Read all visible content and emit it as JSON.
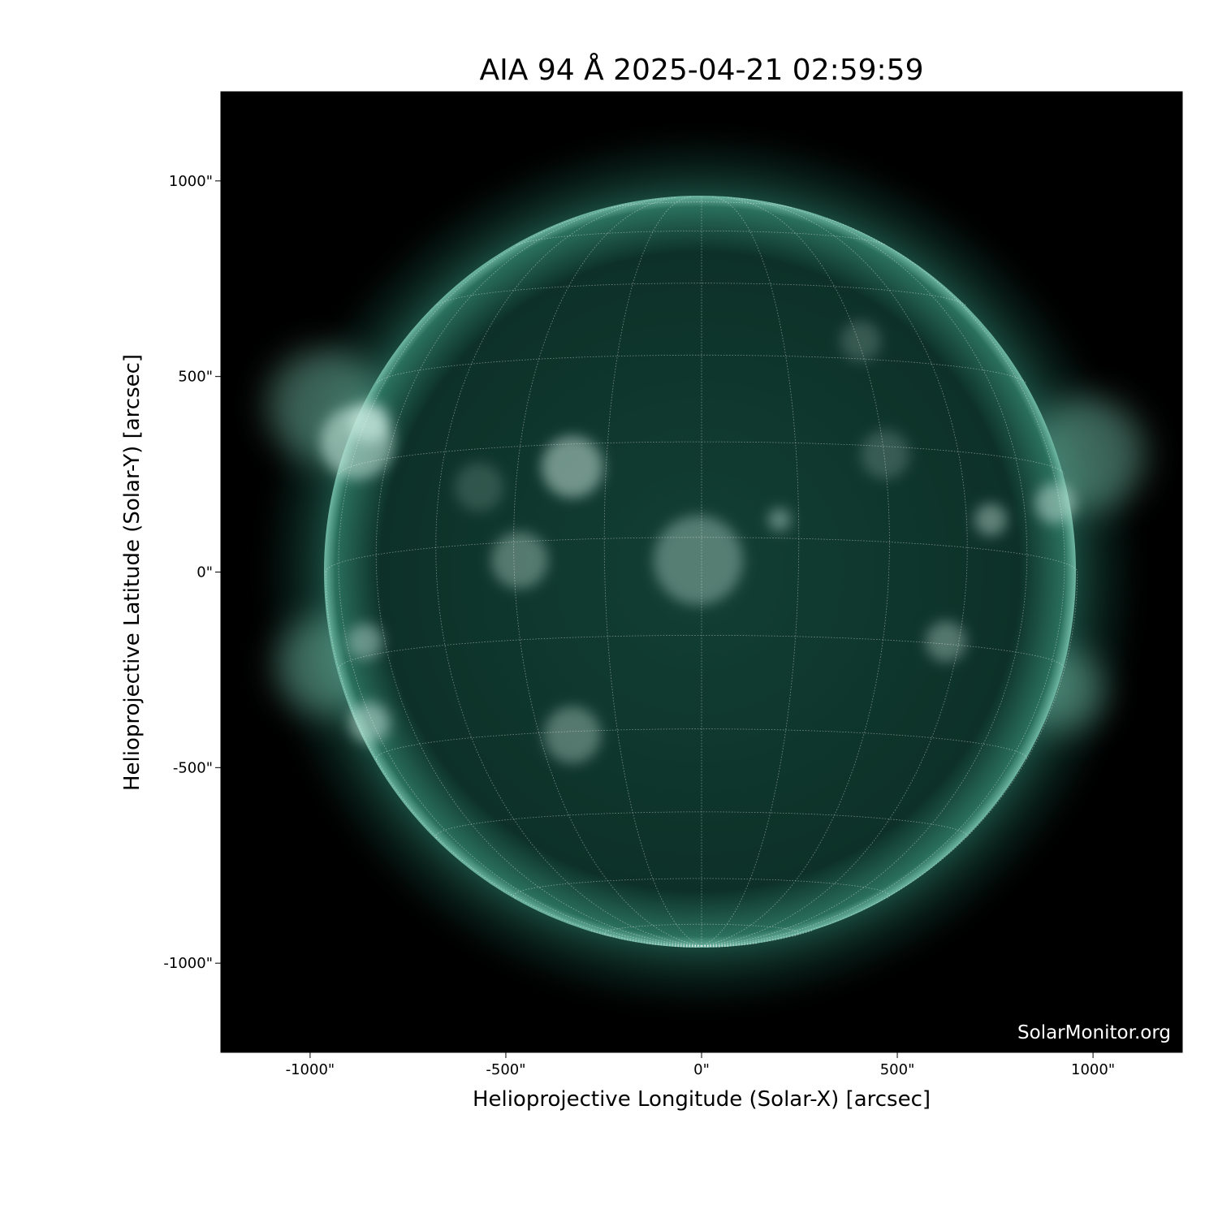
{
  "chart_data": {
    "type": "image",
    "title": "AIA 94 Å 2025-04-21 02:59:59",
    "xlabel": "Helioprojective Longitude (Solar-X) [arcsec]",
    "ylabel": "Helioprojective Latitude (Solar-Y) [arcsec]",
    "xlim": [
      -1228,
      1228
    ],
    "ylim": [
      -1228,
      1228
    ],
    "x_ticks": [
      -1000,
      -500,
      0,
      500,
      1000
    ],
    "x_tick_labels": [
      "-1000\"",
      "-500\"",
      "0\"",
      "500\"",
      "1000\""
    ],
    "y_ticks": [
      1000,
      500,
      0,
      -500,
      -1000
    ],
    "y_tick_labels": [
      "1000\"",
      "500\"",
      "0\"",
      "-500\"",
      "-1000\""
    ],
    "solar_radius_arcsec": 960,
    "heliographic_grid_spacing_deg": 15,
    "colormap": "sdoaia94",
    "colors": {
      "background": "#000000",
      "disk": "#0f3a30",
      "bright": "#cfeee4",
      "grid": "#ffffff"
    },
    "watermark": "SolarMonitor.org"
  }
}
